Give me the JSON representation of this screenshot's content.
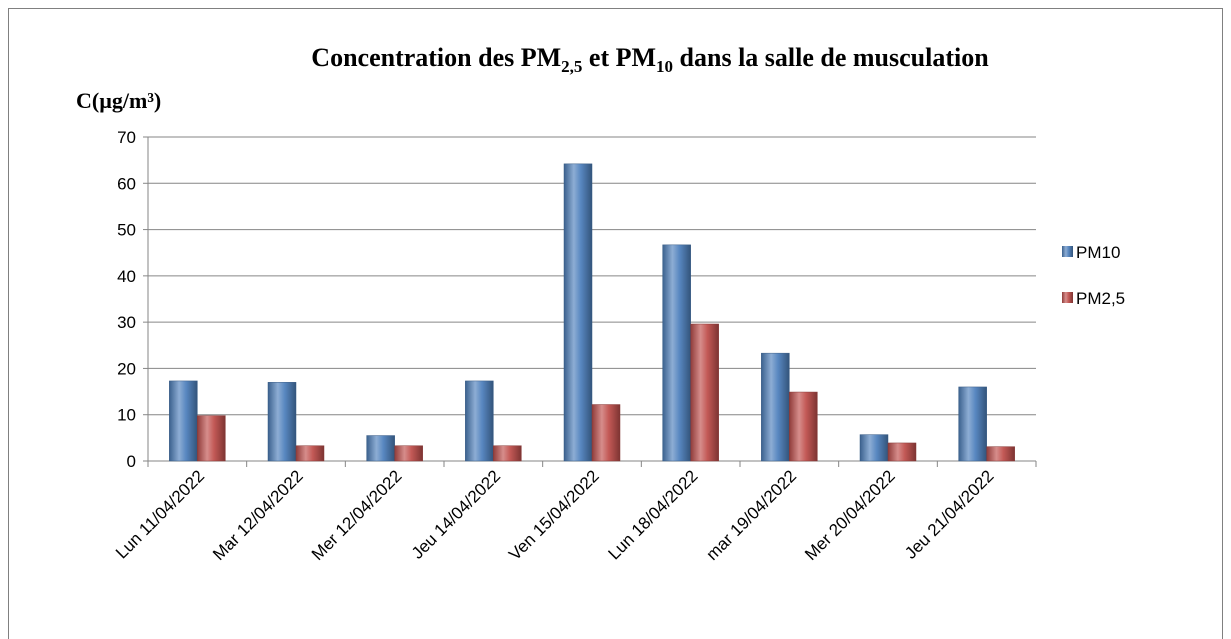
{
  "chart_data": {
    "type": "bar",
    "title": [
      {
        "text": "Concentration des PM"
      },
      {
        "text": "2,5",
        "baseline": "sub"
      },
      {
        "text": " et PM"
      },
      {
        "text": "10",
        "baseline": "sub"
      },
      {
        "text": " dans la salle de musculation"
      }
    ],
    "y_label": "C(µg/m³)",
    "categories": [
      "Lun 11/04/2022",
      "Mar 12/04/2022",
      "Mer 12/04/2022",
      "Jeu 14/04/2022",
      "Ven 15/04/2022",
      "Lun 18/04/2022",
      "mar 19/04/2022",
      "Mer 20/04/2022",
      "Jeu 21/04/2022"
    ],
    "series": [
      {
        "name": "PM10",
        "color": "#4f81bd",
        "values": [
          17.3,
          17,
          5.5,
          17.3,
          64.2,
          46.7,
          23.3,
          5.7,
          16
        ]
      },
      {
        "name": "PM2,5",
        "color": "#c0504d",
        "values": [
          9.8,
          3.3,
          3.3,
          3.3,
          12.2,
          29.6,
          14.9,
          3.9,
          3.1
        ]
      }
    ],
    "ylim": [
      0,
      70
    ],
    "yticks": [
      0,
      10,
      20,
      30,
      40,
      50,
      60,
      70
    ],
    "grid": true,
    "legend": "right"
  }
}
